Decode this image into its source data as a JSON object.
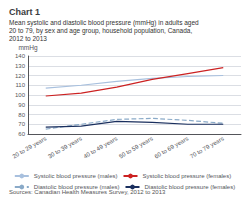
{
  "chart_data": {
    "type": "line",
    "title": "Chart 1",
    "subtitle": [
      "Mean systolic and diastolic blood pressure (mmHg) in adults aged",
      "20 to 79, by sex and age group, household population, Canada,",
      "2012 to 2013"
    ],
    "ylabel": "mmHg",
    "annotations": [
      "Sources: Canadian Health Measures Survey, 2012 to 2013"
    ],
    "categories": [
      "20 to 29 years",
      "30 to 39 years",
      "40 to 49 years",
      "50 to 59 years",
      "60 to 69 years",
      "70 to 79 years"
    ],
    "series": [
      {
        "name": "Systolic blood pressure (males)",
        "color": "#a8c0de",
        "line_style": "solid",
        "values": [
          107,
          110,
          114,
          117,
          119,
          120
        ]
      },
      {
        "name": "Systolic blood pressure (females)",
        "color": "#cc2222",
        "line_style": "solid",
        "values": [
          99,
          102,
          108,
          116,
          122,
          128
        ]
      },
      {
        "name": "Diastolic blood pressure (males)",
        "color": "#8aaac8",
        "line_style": "dashed",
        "values": [
          65,
          70,
          75,
          76,
          74,
          71
        ]
      },
      {
        "name": "Diastolic blood pressure (females)",
        "color": "#1a2f5e",
        "line_style": "solid",
        "values": [
          67,
          68,
          73,
          72,
          70,
          70
        ]
      }
    ],
    "ylim": [
      60,
      140
    ],
    "yticks": [
      60,
      70,
      80,
      90,
      100,
      110,
      120,
      130,
      140
    ],
    "grid": true,
    "legend": "bottom"
  }
}
